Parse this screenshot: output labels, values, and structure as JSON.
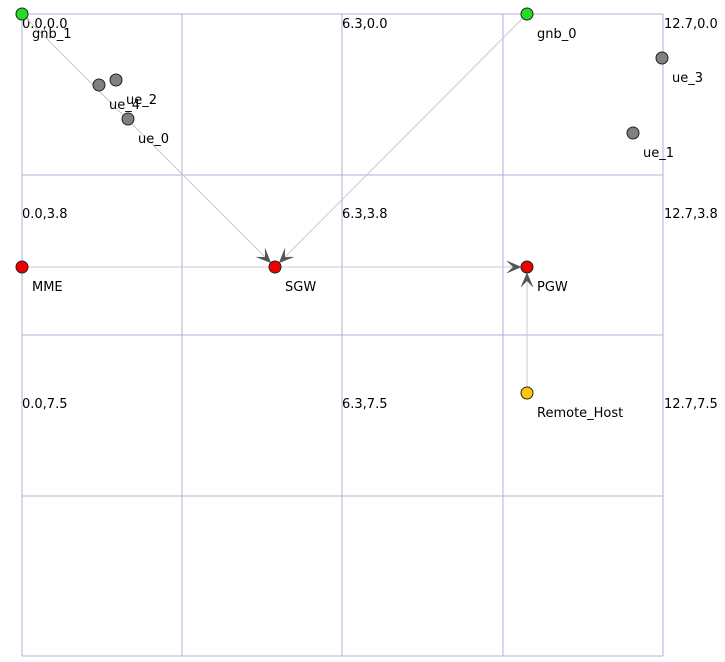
{
  "colors": {
    "grid": "#b0b0d8",
    "link": "#c8c8c8",
    "arrow": "#555555",
    "node_stroke": "#222222",
    "gnb": "#22dd22",
    "ue": "#808080",
    "core": "#ee0000",
    "remote": "#ffc800",
    "background": "#ffffff"
  },
  "grid_labels": [
    {
      "id": "c00",
      "text": "0.0,0.0"
    },
    {
      "id": "c01",
      "text": "6.3,0.0"
    },
    {
      "id": "c02",
      "text": "12.7,0.0"
    },
    {
      "id": "c10",
      "text": "0.0,3.8"
    },
    {
      "id": "c11",
      "text": "6.3,3.8"
    },
    {
      "id": "c12",
      "text": "12.7,3.8"
    },
    {
      "id": "c20",
      "text": "0.0,7.5"
    },
    {
      "id": "c21",
      "text": "6.3,7.5"
    },
    {
      "id": "c22",
      "text": "12.7,7.5"
    }
  ],
  "nodes": [
    {
      "id": "gnb_1",
      "label": "gnb_1",
      "type": "gnb"
    },
    {
      "id": "gnb_0",
      "label": "gnb_0",
      "type": "gnb"
    },
    {
      "id": "ue_4",
      "label": "ue_4",
      "type": "ue"
    },
    {
      "id": "ue_2",
      "label": "ue_2",
      "type": "ue"
    },
    {
      "id": "ue_0",
      "label": "ue_0",
      "type": "ue"
    },
    {
      "id": "ue_3",
      "label": "ue_3",
      "type": "ue"
    },
    {
      "id": "ue_1",
      "label": "ue_1",
      "type": "ue"
    },
    {
      "id": "MME",
      "label": "MME",
      "type": "core"
    },
    {
      "id": "SGW",
      "label": "SGW",
      "type": "core"
    },
    {
      "id": "PGW",
      "label": "PGW",
      "type": "core"
    },
    {
      "id": "Remote_Host",
      "label": "Remote_Host",
      "type": "remote"
    }
  ],
  "links": [
    {
      "from": "gnb_1",
      "to": "SGW",
      "arrow": true
    },
    {
      "from": "gnb_0",
      "to": "SGW",
      "arrow": true
    },
    {
      "from": "MME",
      "to": "SGW",
      "arrow": false
    },
    {
      "from": "SGW",
      "to": "PGW",
      "arrow": true
    },
    {
      "from": "Remote_Host",
      "to": "PGW",
      "arrow": true
    }
  ]
}
